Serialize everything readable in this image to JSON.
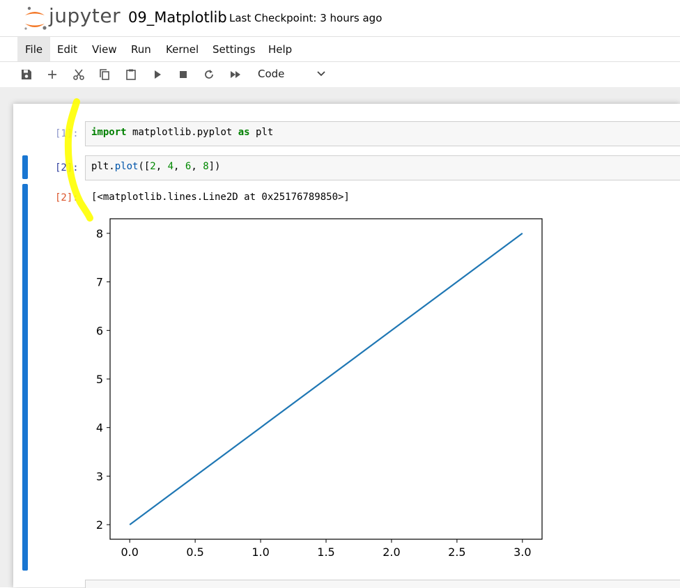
{
  "header": {
    "logo_text": "jupyter",
    "notebook_name": "09_Matplotlib",
    "checkpoint": "Last Checkpoint: 3 hours ago"
  },
  "menu": [
    "File",
    "Edit",
    "View",
    "Run",
    "Kernel",
    "Settings",
    "Help"
  ],
  "toolbar": {
    "icons": [
      "save-icon",
      "add-icon",
      "cut-icon",
      "copy-icon",
      "paste-icon",
      "run-icon",
      "stop-icon",
      "restart-icon",
      "fast-forward-icon"
    ],
    "cell_type": "Code"
  },
  "cells": [
    {
      "prompt": "[1]:",
      "code": [
        {
          "t": "import",
          "c": "kw"
        },
        {
          "t": " matplotlib.pyplot ",
          "c": ""
        },
        {
          "t": "as",
          "c": "kw"
        },
        {
          "t": " plt",
          "c": ""
        }
      ]
    },
    {
      "prompt": "[2]:",
      "code": [
        {
          "t": "plt.",
          "c": ""
        },
        {
          "t": "plot",
          "c": "fn"
        },
        {
          "t": "([",
          "c": ""
        },
        {
          "t": "2",
          "c": "num"
        },
        {
          "t": ", ",
          "c": ""
        },
        {
          "t": "4",
          "c": "num"
        },
        {
          "t": ", ",
          "c": ""
        },
        {
          "t": "6",
          "c": "num"
        },
        {
          "t": ", ",
          "c": ""
        },
        {
          "t": "8",
          "c": "num"
        },
        {
          "t": "])",
          "c": ""
        }
      ]
    }
  ],
  "output": {
    "prompt": "[2]:",
    "text": "[<matplotlib.lines.Line2D at 0x25176789850>]"
  },
  "colors": {
    "accent": "#1976d2",
    "line": "#1f77b4",
    "highlight": "#ffff00",
    "logo_orange": "#f37726"
  },
  "chart_data": {
    "type": "line",
    "x": [
      0,
      1,
      2,
      3
    ],
    "series": [
      {
        "values": [
          2,
          4,
          6,
          8
        ]
      }
    ],
    "xlim": [
      -0.15,
      3.15
    ],
    "ylim": [
      1.7,
      8.3
    ],
    "xticks": [
      0.0,
      0.5,
      1.0,
      1.5,
      2.0,
      2.5,
      3.0
    ],
    "xtick_labels": [
      "0.0",
      "0.5",
      "1.0",
      "1.5",
      "2.0",
      "2.5",
      "3.0"
    ],
    "yticks": [
      2,
      3,
      4,
      5,
      6,
      7,
      8
    ],
    "ytick_labels": [
      "2",
      "3",
      "4",
      "5",
      "6",
      "7",
      "8"
    ],
    "grid": false
  }
}
